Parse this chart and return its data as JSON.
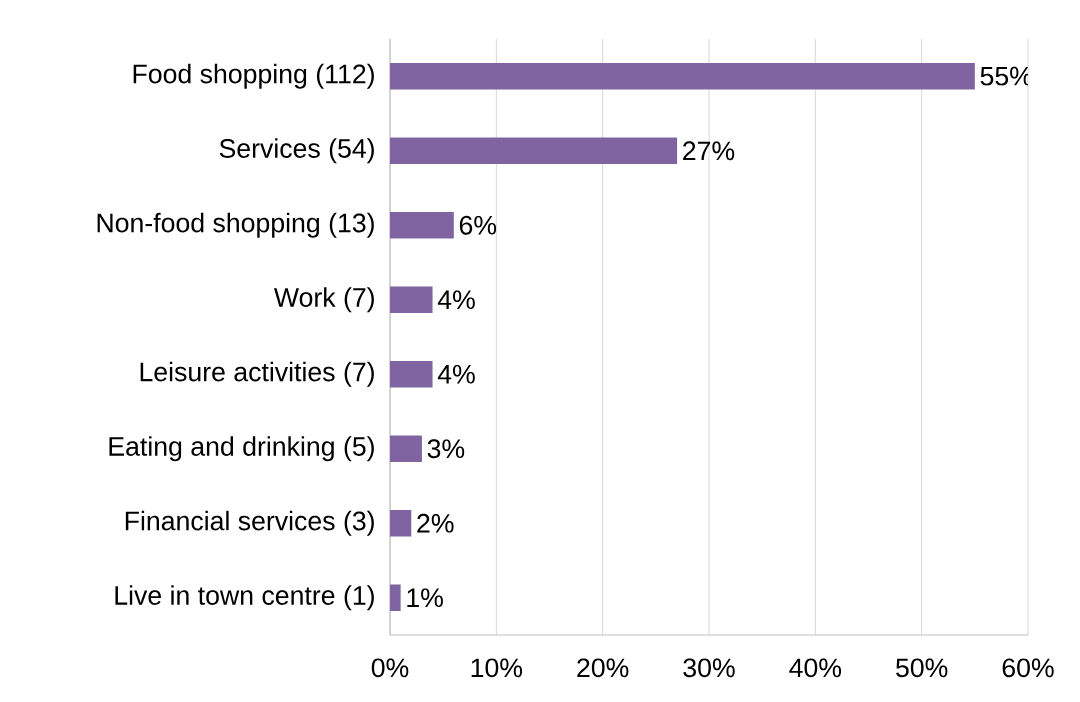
{
  "chart_data": {
    "type": "bar",
    "orientation": "horizontal",
    "categories": [
      "Food shopping (112)",
      "Services (54)",
      "Non-food shopping (13)",
      "Work (7)",
      "Leisure activities (7)",
      "Eating and drinking (5)",
      "Financial services (3)",
      "Live in town centre (1)"
    ],
    "values": [
      55,
      27,
      6,
      4,
      4,
      3,
      2,
      1
    ],
    "value_labels": [
      "55%",
      "27%",
      "6%",
      "4%",
      "4%",
      "3%",
      "2%",
      "1%"
    ],
    "color": "#8064a2",
    "xlim": [
      0,
      60
    ],
    "xticks": [
      {
        "value": 0,
        "label": "0%"
      },
      {
        "value": 10,
        "label": "10%"
      },
      {
        "value": 20,
        "label": "20%"
      },
      {
        "value": 30,
        "label": "30%"
      },
      {
        "value": 40,
        "label": "40%"
      },
      {
        "value": 50,
        "label": "50%"
      },
      {
        "value": 60,
        "label": "60%"
      }
    ],
    "grid": "x"
  }
}
